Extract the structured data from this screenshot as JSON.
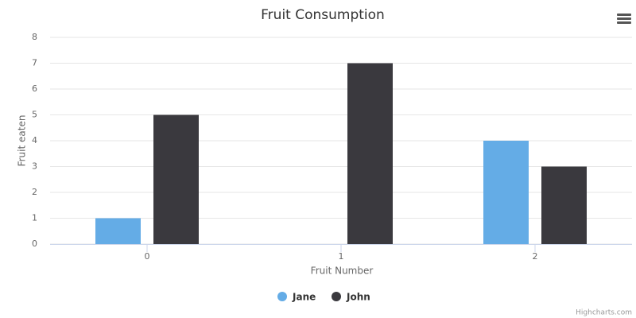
{
  "chart_data": {
    "type": "bar",
    "title": "Fruit Consumption",
    "x_label": "Fruit Number",
    "y_label": "Fruit eaten",
    "categories": [
      "0",
      "1",
      "2"
    ],
    "series": [
      {
        "name": "Jane",
        "color": "#64ace6",
        "values": [
          1,
          0,
          4
        ]
      },
      {
        "name": "John",
        "color": "#3a393e",
        "values": [
          5,
          7,
          3
        ]
      }
    ],
    "ylim": [
      0,
      8
    ],
    "yticks": [
      0,
      1,
      2,
      3,
      4,
      5,
      6,
      7,
      8
    ],
    "grid": true,
    "legend": "bottom",
    "credits": "Highcharts.com"
  }
}
